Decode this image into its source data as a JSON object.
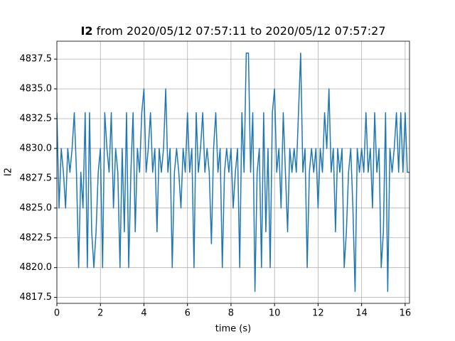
{
  "chart_data": {
    "type": "line",
    "title": {
      "name": "I2",
      "text": "from 2020/05/12 07:57:11 to 2020/05/12 07:57:27"
    },
    "x_label": "time (s)",
    "y_label": "I2",
    "x": [
      0,
      0.1,
      0.2,
      0.3,
      0.4,
      0.5,
      0.6,
      0.7,
      0.8,
      0.9,
      1,
      1.1,
      1.2,
      1.3,
      1.4,
      1.5,
      1.6,
      1.7,
      1.8,
      1.9,
      2,
      2.1,
      2.2,
      2.3,
      2.4,
      2.5,
      2.6,
      2.7,
      2.8,
      2.9,
      3,
      3.1,
      3.2,
      3.3,
      3.4,
      3.5,
      3.6,
      3.7,
      3.8,
      3.9,
      4,
      4.1,
      4.2,
      4.3,
      4.4,
      4.5,
      4.6,
      4.7,
      4.8,
      4.9,
      5,
      5.1,
      5.2,
      5.3,
      5.4,
      5.5,
      5.6,
      5.7,
      5.8,
      5.9,
      6,
      6.1,
      6.2,
      6.3,
      6.4,
      6.5,
      6.6,
      6.7,
      6.8,
      6.9,
      7,
      7.1,
      7.2,
      7.3,
      7.4,
      7.5,
      7.6,
      7.7,
      7.8,
      7.9,
      8,
      8.1,
      8.2,
      8.3,
      8.4,
      8.5,
      8.6,
      8.7,
      8.8,
      8.9,
      9,
      9.1,
      9.2,
      9.3,
      9.4,
      9.5,
      9.6,
      9.7,
      9.8,
      9.9,
      10,
      10.1,
      10.2,
      10.3,
      10.4,
      10.5,
      10.6,
      10.7,
      10.8,
      10.9,
      11,
      11.1,
      11.2,
      11.3,
      11.4,
      11.5,
      11.6,
      11.7,
      11.8,
      11.9,
      12,
      12.1,
      12.2,
      12.3,
      12.4,
      12.5,
      12.6,
      12.7,
      12.8,
      12.9,
      13,
      13.1,
      13.2,
      13.3,
      13.4,
      13.5,
      13.6,
      13.7,
      13.8,
      13.9,
      14,
      14.1,
      14.2,
      14.3,
      14.4,
      14.5,
      14.6,
      14.7,
      14.8,
      14.9,
      15,
      15.1,
      15.2,
      15.3,
      15.4,
      15.5,
      15.6,
      15.7,
      15.8,
      15.9,
      16,
      16.1,
      16.2
    ],
    "series": [
      {
        "name": "I2",
        "color": "#1f77b4",
        "values": [
          4833,
          4825,
          4830,
          4828,
          4825,
          4830,
          4828,
          4830,
          4833,
          4828,
          4820,
          4828,
          4825,
          4833,
          4820,
          4833,
          4823,
          4820,
          4823,
          4828,
          4830,
          4820,
          4833,
          4830,
          4828,
          4833,
          4825,
          4830,
          4828,
          4820,
          4830,
          4823,
          4833,
          4820,
          4828,
          4833,
          4823,
          4830,
          4828,
          4833,
          4835,
          4828,
          4830,
          4833,
          4828,
          4830,
          4823,
          4830,
          4828,
          4830,
          4835,
          4828,
          4830,
          4820,
          4828,
          4830,
          4828,
          4825,
          4830,
          4828,
          4833,
          4828,
          4830,
          4820,
          4833,
          4828,
          4830,
          4833,
          4828,
          4830,
          4828,
          4822,
          4830,
          4833,
          4828,
          4830,
          4820,
          4828,
          4830,
          4828,
          4830,
          4825,
          4828,
          4830,
          4820,
          4833,
          4828,
          4838,
          4838,
          4828,
          4833,
          4818,
          4828,
          4830,
          4820,
          4833,
          4823,
          4830,
          4820,
          4833,
          4835,
          4828,
          4830,
          4825,
          4833,
          4828,
          4823,
          4830,
          4828,
          4830,
          4828,
          4833,
          4838,
          4828,
          4830,
          4820,
          4828,
          4830,
          4828,
          4830,
          4825,
          4830,
          4828,
          4833,
          4830,
          4835,
          4828,
          4830,
          4823,
          4830,
          4828,
          4830,
          4820,
          4823,
          4828,
          4830,
          4825,
          4818,
          4830,
          4828,
          4830,
          4828,
          4833,
          4828,
          4830,
          4825,
          4833,
          4828,
          4830,
          4820,
          4823,
          4833,
          4818,
          4830,
          4828,
          4830,
          4833,
          4828,
          4833,
          4828,
          4833,
          4828,
          4828
        ]
      }
    ],
    "xlim": [
      0,
      16.2
    ],
    "xticks": [
      0,
      2,
      4,
      6,
      8,
      10,
      12,
      14,
      16
    ],
    "ylim": [
      4817,
      4839
    ],
    "yticks": [
      4817.5,
      {
        "value": 4820,
        "label": "4820.0"
      },
      4822.5,
      {
        "value": 4825,
        "label": "4825.0"
      },
      4827.5,
      {
        "value": 4830,
        "label": "4830.0"
      },
      4832.5,
      {
        "value": 4835,
        "label": "4835.0"
      },
      4837.5
    ],
    "grid": true
  }
}
